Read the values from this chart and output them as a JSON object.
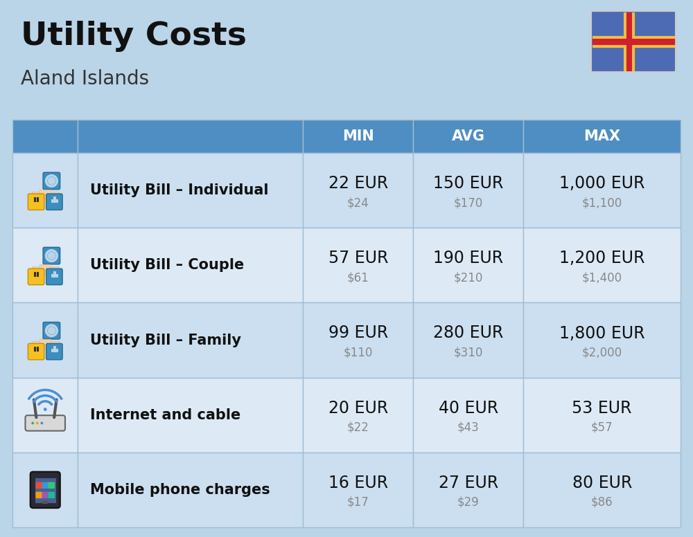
{
  "title": "Utility Costs",
  "subtitle": "Aland Islands",
  "background_color": "#bad4e8",
  "header_bg_color": "#4e8ec2",
  "header_text_color": "#ffffff",
  "row_bg_color_1": "#ccdff0",
  "row_bg_color_2": "#ddeaf6",
  "cell_border_color": "#a8c8e0",
  "col_headers": [
    "MIN",
    "AVG",
    "MAX"
  ],
  "rows": [
    {
      "label": "Utility Bill – Individual",
      "icon": "utility",
      "min_eur": "22 EUR",
      "min_usd": "$24",
      "avg_eur": "150 EUR",
      "avg_usd": "$170",
      "max_eur": "1,000 EUR",
      "max_usd": "$1,100"
    },
    {
      "label": "Utility Bill – Couple",
      "icon": "utility",
      "min_eur": "57 EUR",
      "min_usd": "$61",
      "avg_eur": "190 EUR",
      "avg_usd": "$210",
      "max_eur": "1,200 EUR",
      "max_usd": "$1,400"
    },
    {
      "label": "Utility Bill – Family",
      "icon": "utility",
      "min_eur": "99 EUR",
      "min_usd": "$110",
      "avg_eur": "280 EUR",
      "avg_usd": "$310",
      "max_eur": "1,800 EUR",
      "max_usd": "$2,000"
    },
    {
      "label": "Internet and cable",
      "icon": "internet",
      "min_eur": "20 EUR",
      "min_usd": "$22",
      "avg_eur": "40 EUR",
      "avg_usd": "$43",
      "max_eur": "53 EUR",
      "max_usd": "$57"
    },
    {
      "label": "Mobile phone charges",
      "icon": "mobile",
      "min_eur": "16 EUR",
      "min_usd": "$17",
      "avg_eur": "27 EUR",
      "avg_usd": "$29",
      "max_eur": "80 EUR",
      "max_usd": "$86"
    }
  ],
  "title_fontsize": 34,
  "subtitle_fontsize": 20,
  "header_fontsize": 15,
  "label_fontsize": 15,
  "value_fontsize": 17,
  "usd_fontsize": 12,
  "flag_colors": {
    "blue": "#4d6bb5",
    "yellow": "#f0c040",
    "red": "#d02030"
  }
}
